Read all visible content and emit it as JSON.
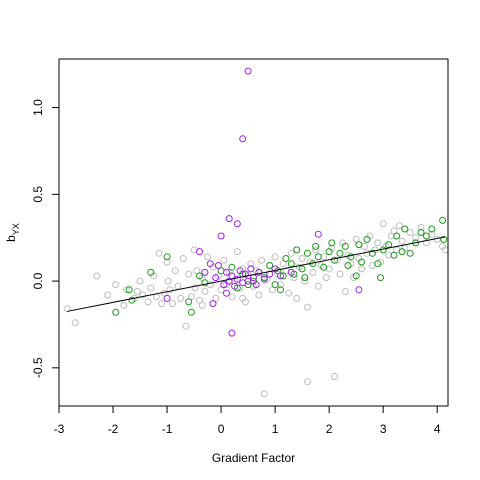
{
  "chart_data": {
    "type": "scatter",
    "xlabel": "Gradient Factor",
    "ylabel": {
      "main": "b",
      "subscript": "YX"
    },
    "xlim": [
      -3,
      4.2
    ],
    "ylim": [
      -0.72,
      1.28
    ],
    "x_ticks": [
      -3,
      -2,
      -1,
      0,
      1,
      2,
      3,
      4
    ],
    "y_ticks": [
      -0.5,
      0.0,
      0.5,
      1.0
    ],
    "x_tick_labels": [
      "-3",
      "-2",
      "-1",
      "0",
      "1",
      "2",
      "3",
      "4"
    ],
    "y_tick_labels": [
      "-0.5",
      "0.0",
      "0.5",
      "1.0"
    ],
    "grid": false,
    "colors": {
      "gray": "#bdbdbd",
      "green": "#1a9a1a",
      "purple": "#a020f0",
      "line": "#000000"
    },
    "trend_line": {
      "x": [
        -2.85,
        4.15
      ],
      "y": [
        -0.175,
        0.255
      ]
    },
    "series": [
      {
        "color_key": "gray",
        "points": [
          [
            -2.85,
            -0.16
          ],
          [
            -2.7,
            -0.24
          ],
          [
            -2.3,
            0.03
          ],
          [
            -2.1,
            -0.08
          ],
          [
            -1.95,
            -0.02
          ],
          [
            -1.8,
            -0.14
          ],
          [
            -1.75,
            -0.05
          ],
          [
            -1.6,
            -0.1
          ],
          [
            -1.55,
            -0.06
          ],
          [
            -1.5,
            0.0
          ],
          [
            -1.45,
            -0.08
          ],
          [
            -1.35,
            -0.12
          ],
          [
            -1.3,
            -0.04
          ],
          [
            -1.25,
            0.03
          ],
          [
            -1.2,
            -0.09
          ],
          [
            -1.15,
            0.16
          ],
          [
            -1.1,
            -0.13
          ],
          [
            -1.05,
            -0.07
          ],
          [
            -1.0,
            0.11
          ],
          [
            -0.98,
            0.0
          ],
          [
            -0.95,
            -0.05
          ],
          [
            -0.9,
            -0.13
          ],
          [
            -0.85,
            0.06
          ],
          [
            -0.8,
            -0.03
          ],
          [
            -0.75,
            -0.1
          ],
          [
            -0.7,
            0.13
          ],
          [
            -0.65,
            -0.26
          ],
          [
            -0.6,
            0.04
          ],
          [
            -0.55,
            -0.09
          ],
          [
            -0.5,
            0.18
          ],
          [
            -0.48,
            -0.04
          ],
          [
            -0.45,
            0.06
          ],
          [
            -0.4,
            -0.11
          ],
          [
            -0.35,
            0.02
          ],
          [
            -0.3,
            -0.06
          ],
          [
            -0.25,
            0.14
          ],
          [
            -0.2,
            -0.02
          ],
          [
            -0.15,
            0.08
          ],
          [
            -0.1,
            -0.1
          ],
          [
            -0.05,
            0.03
          ],
          [
            0.0,
            -0.05
          ],
          [
            0.05,
            0.12
          ],
          [
            0.1,
            -0.02
          ],
          [
            0.15,
            0.05
          ],
          [
            0.2,
            -0.09
          ],
          [
            0.25,
            0.0
          ],
          [
            0.3,
            0.17
          ],
          [
            0.35,
            -0.04
          ],
          [
            0.4,
            0.07
          ],
          [
            0.45,
            -0.12
          ],
          [
            0.5,
            0.03
          ],
          [
            0.55,
            0.1
          ],
          [
            0.6,
            -0.03
          ],
          [
            0.65,
            0.06
          ],
          [
            0.7,
            -0.08
          ],
          [
            0.75,
            0.12
          ],
          [
            0.8,
            -0.65
          ],
          [
            0.85,
            0.01
          ],
          [
            0.9,
            0.09
          ],
          [
            0.95,
            -0.05
          ],
          [
            1.0,
            0.14
          ],
          [
            1.05,
            0.04
          ],
          [
            1.1,
            -0.02
          ],
          [
            1.15,
            0.1
          ],
          [
            1.2,
            0.06
          ],
          [
            1.25,
            -0.07
          ],
          [
            1.3,
            0.16
          ],
          [
            1.35,
            0.02
          ],
          [
            1.4,
            -0.1
          ],
          [
            1.45,
            0.08
          ],
          [
            1.5,
            0.13
          ],
          [
            1.55,
            0.0
          ],
          [
            1.6,
            -0.58
          ],
          [
            1.65,
            0.11
          ],
          [
            1.7,
            0.05
          ],
          [
            1.75,
            0.18
          ],
          [
            1.8,
            -0.03
          ],
          [
            1.85,
            0.09
          ],
          [
            1.9,
            0.14
          ],
          [
            1.95,
            0.02
          ],
          [
            2.0,
            0.07
          ],
          [
            2.05,
            0.19
          ],
          [
            2.1,
            -0.55
          ],
          [
            2.15,
            0.12
          ],
          [
            2.2,
            0.04
          ],
          [
            2.25,
            0.22
          ],
          [
            2.3,
            -0.06
          ],
          [
            2.35,
            0.15
          ],
          [
            2.4,
            0.1
          ],
          [
            2.45,
            0.02
          ],
          [
            2.5,
            0.24
          ],
          [
            2.55,
            0.13
          ],
          [
            2.6,
            0.07
          ],
          [
            2.65,
            0.2
          ],
          [
            2.7,
            0.16
          ],
          [
            2.75,
            0.26
          ],
          [
            2.8,
            0.09
          ],
          [
            2.85,
            0.18
          ],
          [
            2.9,
            0.22
          ],
          [
            2.95,
            0.11
          ],
          [
            3.0,
            0.33
          ],
          [
            3.05,
            0.2
          ],
          [
            3.1,
            0.15
          ],
          [
            3.15,
            0.26
          ],
          [
            3.2,
            0.29
          ],
          [
            3.25,
            0.18
          ],
          [
            3.3,
            0.32
          ],
          [
            3.35,
            0.23
          ],
          [
            3.4,
            0.19
          ],
          [
            3.5,
            0.28
          ],
          [
            3.6,
            0.25
          ],
          [
            3.7,
            0.31
          ],
          [
            3.8,
            0.22
          ],
          [
            3.9,
            0.27
          ],
          [
            4.0,
            0.24
          ],
          [
            4.1,
            0.2
          ],
          [
            4.15,
            0.18
          ],
          [
            -0.35,
            -0.14
          ],
          [
            0.4,
            -0.1
          ],
          [
            1.6,
            -0.15
          ]
        ]
      },
      {
        "color_key": "green",
        "points": [
          [
            -1.95,
            -0.18
          ],
          [
            -1.7,
            -0.05
          ],
          [
            -1.65,
            -0.11
          ],
          [
            -1.3,
            0.05
          ],
          [
            -1.0,
            0.14
          ],
          [
            -0.6,
            -0.12
          ],
          [
            -0.55,
            -0.18
          ],
          [
            -0.4,
            0.03
          ],
          [
            -0.3,
            -0.01
          ],
          [
            0.0,
            0.06
          ],
          [
            0.2,
            0.08
          ],
          [
            0.4,
            0.04
          ],
          [
            0.5,
            -0.02
          ],
          [
            0.6,
            0.0
          ],
          [
            0.7,
            0.05
          ],
          [
            0.8,
            0.02
          ],
          [
            0.9,
            0.09
          ],
          [
            1.0,
            -0.02
          ],
          [
            1.05,
            0.06
          ],
          [
            1.15,
            0.03
          ],
          [
            1.2,
            0.13
          ],
          [
            1.3,
            0.1
          ],
          [
            1.35,
            0.04
          ],
          [
            1.4,
            0.18
          ],
          [
            1.5,
            0.07
          ],
          [
            1.55,
            0.02
          ],
          [
            1.6,
            0.16
          ],
          [
            1.7,
            0.1
          ],
          [
            1.75,
            0.2
          ],
          [
            1.8,
            0.14
          ],
          [
            1.9,
            0.08
          ],
          [
            2.0,
            0.17
          ],
          [
            2.05,
            0.22
          ],
          [
            2.1,
            0.12
          ],
          [
            2.2,
            0.16
          ],
          [
            2.3,
            0.2
          ],
          [
            2.35,
            0.09
          ],
          [
            2.4,
            0.14
          ],
          [
            2.5,
            0.03
          ],
          [
            2.55,
            0.21
          ],
          [
            2.6,
            0.11
          ],
          [
            2.7,
            0.24
          ],
          [
            2.8,
            0.16
          ],
          [
            2.9,
            0.1
          ],
          [
            2.95,
            0.02
          ],
          [
            3.0,
            0.18
          ],
          [
            3.1,
            0.21
          ],
          [
            3.2,
            0.15
          ],
          [
            3.25,
            0.26
          ],
          [
            3.35,
            0.17
          ],
          [
            3.4,
            0.3
          ],
          [
            3.5,
            0.16
          ],
          [
            3.6,
            0.22
          ],
          [
            3.7,
            0.28
          ],
          [
            3.8,
            0.26
          ],
          [
            3.9,
            0.3
          ],
          [
            4.1,
            0.35
          ],
          [
            4.12,
            0.24
          ],
          [
            1.1,
            -0.05
          ],
          [
            0.3,
            -0.04
          ]
        ]
      },
      {
        "color_key": "purple",
        "points": [
          [
            0.5,
            1.21
          ],
          [
            0.4,
            0.82
          ],
          [
            0.15,
            0.36
          ],
          [
            0.3,
            0.33
          ],
          [
            0.0,
            0.26
          ],
          [
            -0.4,
            0.17
          ],
          [
            -0.2,
            0.1
          ],
          [
            -0.1,
            0.02
          ],
          [
            0.05,
            -0.02
          ],
          [
            0.1,
            0.05
          ],
          [
            0.15,
            0.0
          ],
          [
            0.2,
            0.03
          ],
          [
            0.25,
            -0.03
          ],
          [
            0.3,
            0.01
          ],
          [
            0.35,
            0.06
          ],
          [
            0.4,
            -0.01
          ],
          [
            0.45,
            0.04
          ],
          [
            0.5,
            0.0
          ],
          [
            0.55,
            0.07
          ],
          [
            0.6,
            0.02
          ],
          [
            0.65,
            -0.02
          ],
          [
            0.7,
            0.05
          ],
          [
            0.8,
            0.01
          ],
          [
            0.9,
            0.04
          ],
          [
            1.0,
            0.07
          ],
          [
            1.1,
            0.03
          ],
          [
            0.2,
            -0.3
          ],
          [
            -0.15,
            -0.13
          ],
          [
            -0.3,
            0.05
          ],
          [
            -0.05,
            0.09
          ],
          [
            0.1,
            -0.07
          ],
          [
            1.8,
            0.27
          ],
          [
            2.55,
            -0.05
          ],
          [
            1.3,
            0.05
          ],
          [
            -1.0,
            -0.1
          ]
        ]
      }
    ]
  }
}
